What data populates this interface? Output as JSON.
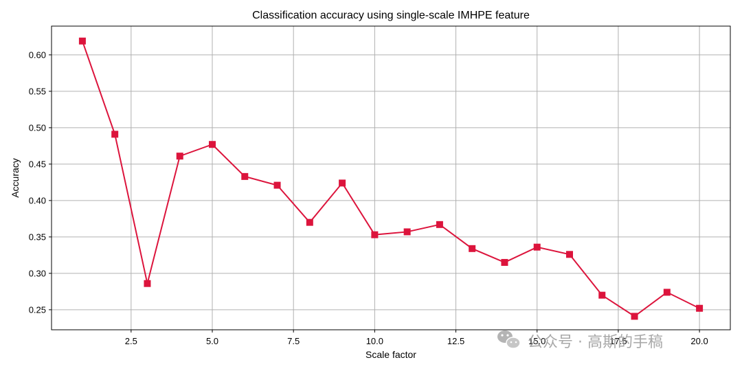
{
  "chart_data": {
    "type": "line",
    "title": "Classification accuracy using single-scale IMHPE feature",
    "xlabel": "Scale factor",
    "ylabel": "Accuracy",
    "xlim": [
      0.05,
      20.95
    ],
    "ylim": [
      0.2225,
      0.6395
    ],
    "xticks": [
      "2.5",
      "5.0",
      "7.5",
      "10.0",
      "12.5",
      "15.0",
      "17.5",
      "20.0"
    ],
    "yticks": [
      "0.25",
      "0.30",
      "0.35",
      "0.40",
      "0.45",
      "0.50",
      "0.55",
      "0.60"
    ],
    "grid": true,
    "marker": "square",
    "color": "#dc143c",
    "x": [
      1,
      2,
      3,
      4,
      5,
      6,
      7,
      8,
      9,
      10,
      11,
      12,
      13,
      14,
      15,
      16,
      17,
      18,
      19,
      20
    ],
    "values": [
      0.619,
      0.491,
      0.286,
      0.461,
      0.477,
      0.433,
      0.421,
      0.37,
      0.424,
      0.353,
      0.357,
      0.367,
      0.334,
      0.315,
      0.336,
      0.326,
      0.27,
      0.241,
      0.274,
      0.252
    ]
  },
  "watermark": {
    "text": "公众号 · 高斯的手稿",
    "icon": "wechat-icon"
  }
}
